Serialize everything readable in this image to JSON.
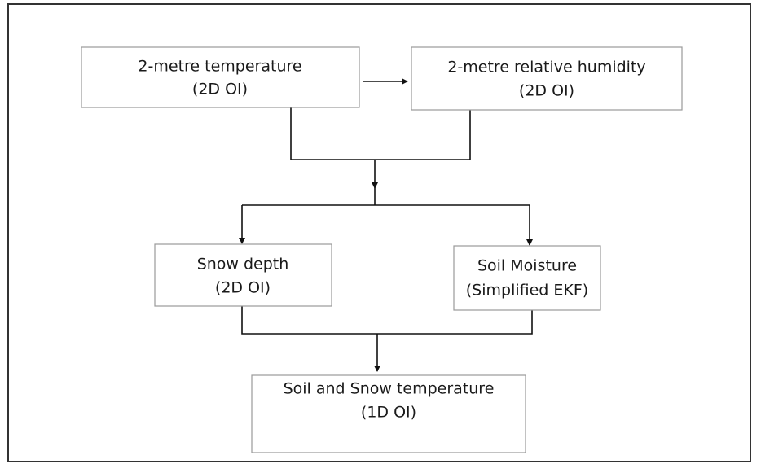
{
  "nodes": [
    {
      "lines": [
        "2-metre temperature",
        "(2D OI)"
      ]
    },
    {
      "lines": [
        "2-metre relative humidity",
        "(2D OI)"
      ]
    },
    {
      "lines": [
        "Snow depth",
        "(2D OI)"
      ]
    },
    {
      "lines": [
        "Soil Moisture",
        "(Simplified EKF)"
      ]
    },
    {
      "lines": [
        "Soil and Snow temperature",
        "(1D OI)"
      ]
    }
  ]
}
